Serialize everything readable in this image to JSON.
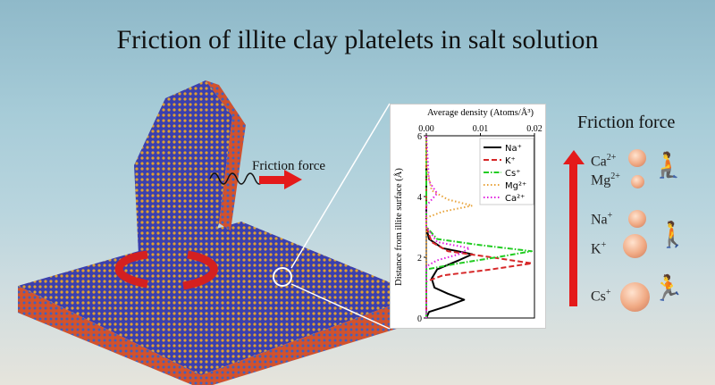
{
  "title": "Friction of illite clay platelets in salt solution",
  "illustration": {
    "friction_label": "Friction force",
    "arrow_color": "#e41a1a"
  },
  "right_panel": {
    "title": "Friction force",
    "arrow_color": "#e41a1a",
    "ions": [
      {
        "base": "Ca",
        "charge": "2+"
      },
      {
        "base": "Mg",
        "charge": "2+"
      },
      {
        "base": "Na",
        "charge": "+"
      },
      {
        "base": "K",
        "charge": "+"
      },
      {
        "base": "Cs",
        "charge": "+"
      }
    ],
    "icons": [
      "crawling-person-icon",
      "walking-person-icon",
      "running-person-icon"
    ]
  },
  "chart_data": {
    "type": "line",
    "xlabel": "Average density (Atoms/Å³)",
    "ylabel": "Distance from illite surface (Å)",
    "xlim": [
      0,
      0.02
    ],
    "ylim": [
      0,
      6
    ],
    "xticks": [
      "0.00",
      "0.01",
      "0.02"
    ],
    "yticks": [
      "0",
      "2",
      "4",
      "6"
    ],
    "legend_placement": "top-right",
    "series": [
      {
        "name": "Na⁺",
        "color": "#000000",
        "dash": "solid",
        "points": [
          [
            0,
            0
          ],
          [
            0.0005,
            0.2
          ],
          [
            0.004,
            0.4
          ],
          [
            0.007,
            0.6
          ],
          [
            0.004,
            0.8
          ],
          [
            0.0015,
            1.0
          ],
          [
            0.001,
            1.3
          ],
          [
            0.002,
            1.6
          ],
          [
            0.006,
            1.9
          ],
          [
            0.0085,
            2.1
          ],
          [
            0.003,
            2.3
          ],
          [
            0.0005,
            2.6
          ],
          [
            0,
            3
          ],
          [
            0,
            6
          ]
        ]
      },
      {
        "name": "K⁺",
        "color": "#d62728",
        "dash": "dashed",
        "points": [
          [
            0,
            0
          ],
          [
            0,
            1.2
          ],
          [
            0.003,
            1.4
          ],
          [
            0.012,
            1.6
          ],
          [
            0.0195,
            1.8
          ],
          [
            0.012,
            2.0
          ],
          [
            0.004,
            2.2
          ],
          [
            0.001,
            2.5
          ],
          [
            0,
            3
          ],
          [
            0,
            6
          ]
        ]
      },
      {
        "name": "Cs⁺",
        "color": "#22cc22",
        "dash": "dashdot",
        "points": [
          [
            0,
            0
          ],
          [
            0,
            1.6
          ],
          [
            0.006,
            1.8
          ],
          [
            0.013,
            2.0
          ],
          [
            0.0195,
            2.2
          ],
          [
            0.01,
            2.4
          ],
          [
            0.002,
            2.6
          ],
          [
            0,
            3
          ],
          [
            0,
            6
          ]
        ]
      },
      {
        "name": "Mg²⁺",
        "color": "#e8a33a",
        "dash": "dotted",
        "points": [
          [
            0,
            0
          ],
          [
            0,
            3.3
          ],
          [
            0.003,
            3.5
          ],
          [
            0.0085,
            3.7
          ],
          [
            0.004,
            3.9
          ],
          [
            0.001,
            4.2
          ],
          [
            0,
            5
          ],
          [
            0,
            6
          ]
        ]
      },
      {
        "name": "Ca²⁺",
        "color": "#e020e0",
        "dash": "dotted",
        "points": [
          [
            0,
            0
          ],
          [
            0,
            1.7
          ],
          [
            0.002,
            1.9
          ],
          [
            0.006,
            2.1
          ],
          [
            0.008,
            2.3
          ],
          [
            0.002,
            2.5
          ],
          [
            0,
            3
          ],
          [
            0,
            3.7
          ],
          [
            0.002,
            4.1
          ],
          [
            0.0005,
            4.5
          ],
          [
            0,
            6
          ]
        ]
      }
    ]
  }
}
